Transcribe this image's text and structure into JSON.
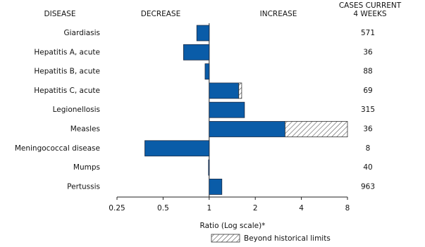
{
  "chart_data": {
    "type": "bar",
    "orientation": "horizontal",
    "headers": {
      "disease": "DISEASE",
      "decrease": "DECREASE",
      "increase": "INCREASE",
      "cases_line1": "CASES CURRENT",
      "cases_line2": "4 WEEKS"
    },
    "xlabel": "Ratio (Log scale)*",
    "xscale": "log",
    "xlim": [
      0.25,
      8
    ],
    "xticks": [
      0.25,
      0.5,
      1,
      2,
      4,
      8
    ],
    "categories": [
      "Giardiasis",
      "Hepatitis A, acute",
      "Hepatitis B, acute",
      "Hepatitis C, acute",
      "Legionellosis",
      "Measles",
      "Meningococcal disease",
      "Mumps",
      "Pertussis"
    ],
    "series": [
      {
        "name": "Ratio",
        "color": "#0a5ca8",
        "values": [
          0.83,
          0.68,
          0.94,
          1.63,
          1.7,
          8,
          0.38,
          0.99,
          1.21
        ],
        "historical_limits": [
          null,
          null,
          null,
          1.56,
          null,
          3.13,
          null,
          null,
          null
        ]
      }
    ],
    "beyond_label": "Beyond historical limits",
    "cases": [
      "571",
      "36",
      "88",
      "69",
      "315",
      "36",
      "8",
      "40",
      "963"
    ]
  }
}
